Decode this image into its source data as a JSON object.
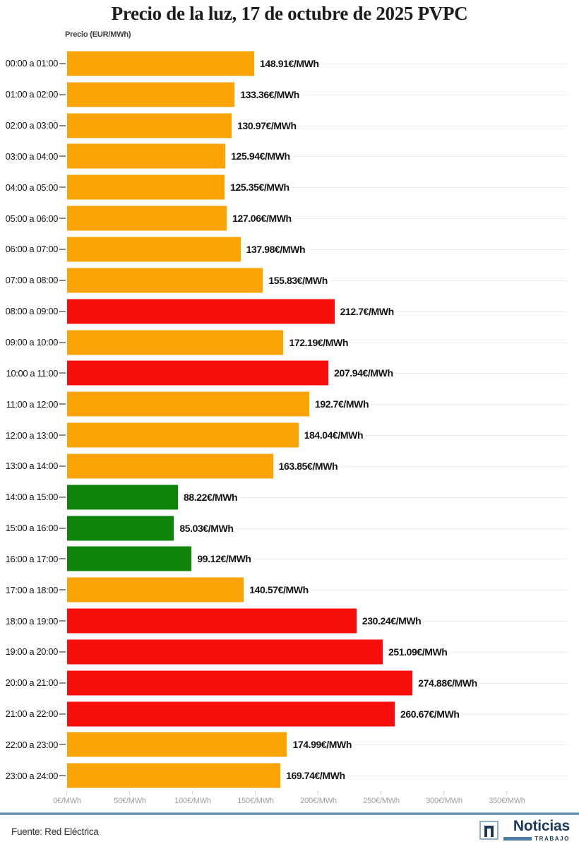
{
  "page": {
    "title": "Precio de la luz, 17 de octubre de 2025 PVPC",
    "source": "Fuente: Red Eléctrica"
  },
  "chart_data": {
    "type": "bar",
    "orientation": "horizontal",
    "title": "Precio de la luz, 17 de octubre de 2025 PVPC",
    "axis_title": "Precio (EUR/MWh)",
    "unit_suffix": "€/MWh",
    "xlim": [
      0,
      350
    ],
    "grid": true,
    "legend": "none",
    "x_tick_values": [
      0,
      50,
      100,
      150,
      200,
      250,
      300,
      350
    ],
    "x_tick_labels": [
      "0€/MWh",
      "50€/MWh",
      "100€/MWh",
      "150€/MWh",
      "200€/MWh",
      "250€/MWh",
      "300€/MWh",
      "350€/MWh"
    ],
    "categories": [
      "00:00 a 01:00",
      "01:00 a 02:00",
      "02:00 a 03:00",
      "03:00 a 04:00",
      "04:00 a 05:00",
      "05:00 a 06:00",
      "06:00 a 07:00",
      "07:00 a 08:00",
      "08:00 a 09:00",
      "09:00 a 10:00",
      "10:00 a 11:00",
      "11:00 a 12:00",
      "12:00 a 13:00",
      "13:00 a 14:00",
      "14:00 a 15:00",
      "15:00 a 16:00",
      "16:00 a 17:00",
      "17:00 a 18:00",
      "18:00 a 19:00",
      "19:00 a 20:00",
      "20:00 a 21:00",
      "21:00 a 22:00",
      "22:00 a 23:00",
      "23:00 a 24:00"
    ],
    "values": [
      148.91,
      133.36,
      130.97,
      125.94,
      125.35,
      127.06,
      137.98,
      155.83,
      212.7,
      172.19,
      207.94,
      192.7,
      184.04,
      163.85,
      88.22,
      85.03,
      99.12,
      140.57,
      230.24,
      251.09,
      274.88,
      260.67,
      174.99,
      169.74
    ],
    "value_labels": [
      "148.91€/MWh",
      "133.36€/MWh",
      "130.97€/MWh",
      "125.94€/MWh",
      "125.35€/MWh",
      "127.06€/MWh",
      "137.98€/MWh",
      "155.83€/MWh",
      "212.7€/MWh",
      "172.19€/MWh",
      "207.94€/MWh",
      "192.7€/MWh",
      "184.04€/MWh",
      "163.85€/MWh",
      "88.22€/MWh",
      "85.03€/MWh",
      "99.12€/MWh",
      "140.57€/MWh",
      "230.24€/MWh",
      "251.09€/MWh",
      "274.88€/MWh",
      "260.67€/MWh",
      "174.99€/MWh",
      "169.74€/MWh"
    ],
    "levels": [
      "mid",
      "mid",
      "mid",
      "mid",
      "mid",
      "mid",
      "mid",
      "mid",
      "high",
      "mid",
      "high",
      "mid",
      "mid",
      "mid",
      "low",
      "low",
      "low",
      "mid",
      "high",
      "high",
      "high",
      "high",
      "mid",
      "mid"
    ],
    "level_colors": {
      "low": "#0E8408",
      "mid": "#FBA304",
      "high": "#F70D09"
    }
  },
  "colors": {
    "gridline": "#ebebeb",
    "row_tick": "#8c8c8c",
    "axis_text": "#9d9d9d",
    "separator": "#5E89A8",
    "logo_navy": "#1D3A5A",
    "logo_blue": "#4D7EA8"
  },
  "logo": {
    "name": "Noticias",
    "sub": "TRABAJO"
  }
}
